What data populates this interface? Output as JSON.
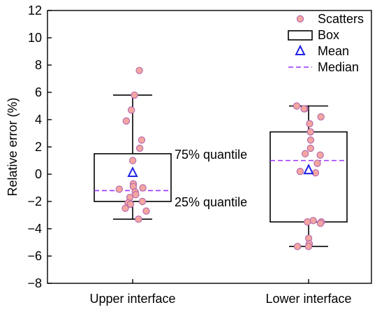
{
  "chart_data": {
    "type": "box",
    "ylabel": "Relative error (%)",
    "ylim": [
      -8,
      12
    ],
    "yticks": [
      -8,
      -6,
      -4,
      -2,
      0,
      2,
      4,
      6,
      8,
      10,
      12
    ],
    "categories": [
      "Upper interface",
      "Lower interface"
    ],
    "boxes": [
      {
        "category": "Upper interface",
        "q1": -2.0,
        "q3": 1.5,
        "median": -1.2,
        "mean": 0.1,
        "whisker_low": -3.3,
        "whisker_high": 5.8,
        "points": [
          7.6,
          5.8,
          4.7,
          3.9,
          2.5,
          1.9,
          1.0,
          -0.7,
          -0.9,
          -1.1,
          -1.3,
          -1.5,
          -1.7,
          -2.0,
          -2.1,
          -2.2,
          -2.5,
          -2.7,
          -3.3,
          -1.0
        ]
      },
      {
        "category": "Lower interface",
        "q1": -3.5,
        "q3": 3.1,
        "median": 1.0,
        "mean": 0.3,
        "whisker_low": -5.3,
        "whisker_high": 5.0,
        "points": [
          5.0,
          4.8,
          4.8,
          4.2,
          3.7,
          3.1,
          3.1,
          2.5,
          1.9,
          1.5,
          1.4,
          0.8,
          0.2,
          0.1,
          -3.4,
          -3.5,
          -3.5,
          -3.6,
          -4.7,
          -5.1,
          -5.3,
          -5.3
        ]
      }
    ],
    "annotations": [
      "75% quantile",
      "25% quantile"
    ],
    "legend": {
      "position": "top-right",
      "entries": [
        "Scatters",
        "Box",
        "Mean",
        "Median"
      ]
    },
    "colors": {
      "scatter_fill": "#f4a6a0",
      "scatter_stroke": "#b86bb0",
      "mean_stroke": "#1f22e6",
      "median": "#9b30ff",
      "box": "#000000"
    }
  }
}
